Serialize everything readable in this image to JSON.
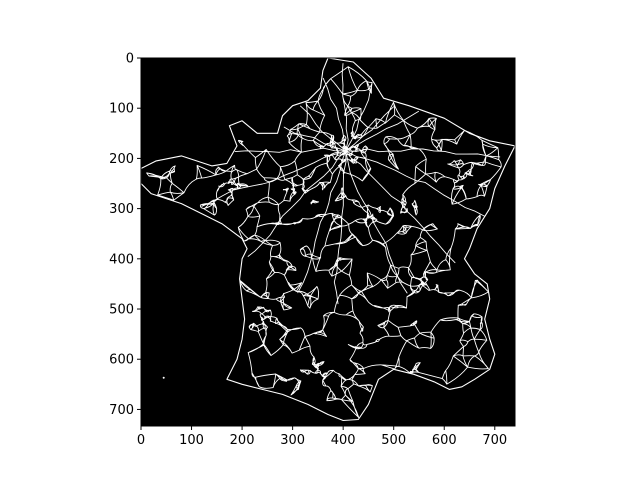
{
  "chart_data": {
    "type": "heatmap",
    "title": "",
    "xlabel": "",
    "ylabel": "",
    "xlim": [
      0,
      740
    ],
    "ylim": [
      733,
      0
    ],
    "x_ticks": [
      0,
      100,
      200,
      300,
      400,
      500,
      600,
      700
    ],
    "y_ticks": [
      0,
      100,
      200,
      300,
      400,
      500,
      600,
      700
    ],
    "x_tick_labels": [
      "0",
      "100",
      "200",
      "300",
      "400",
      "500",
      "600",
      "700"
    ],
    "y_tick_labels": [
      "0",
      "100",
      "200",
      "300",
      "400",
      "500",
      "600",
      "700"
    ],
    "background_color": "#000000",
    "foreground_color": "#ffffff",
    "depicts": "road-network",
    "grid": false
  }
}
